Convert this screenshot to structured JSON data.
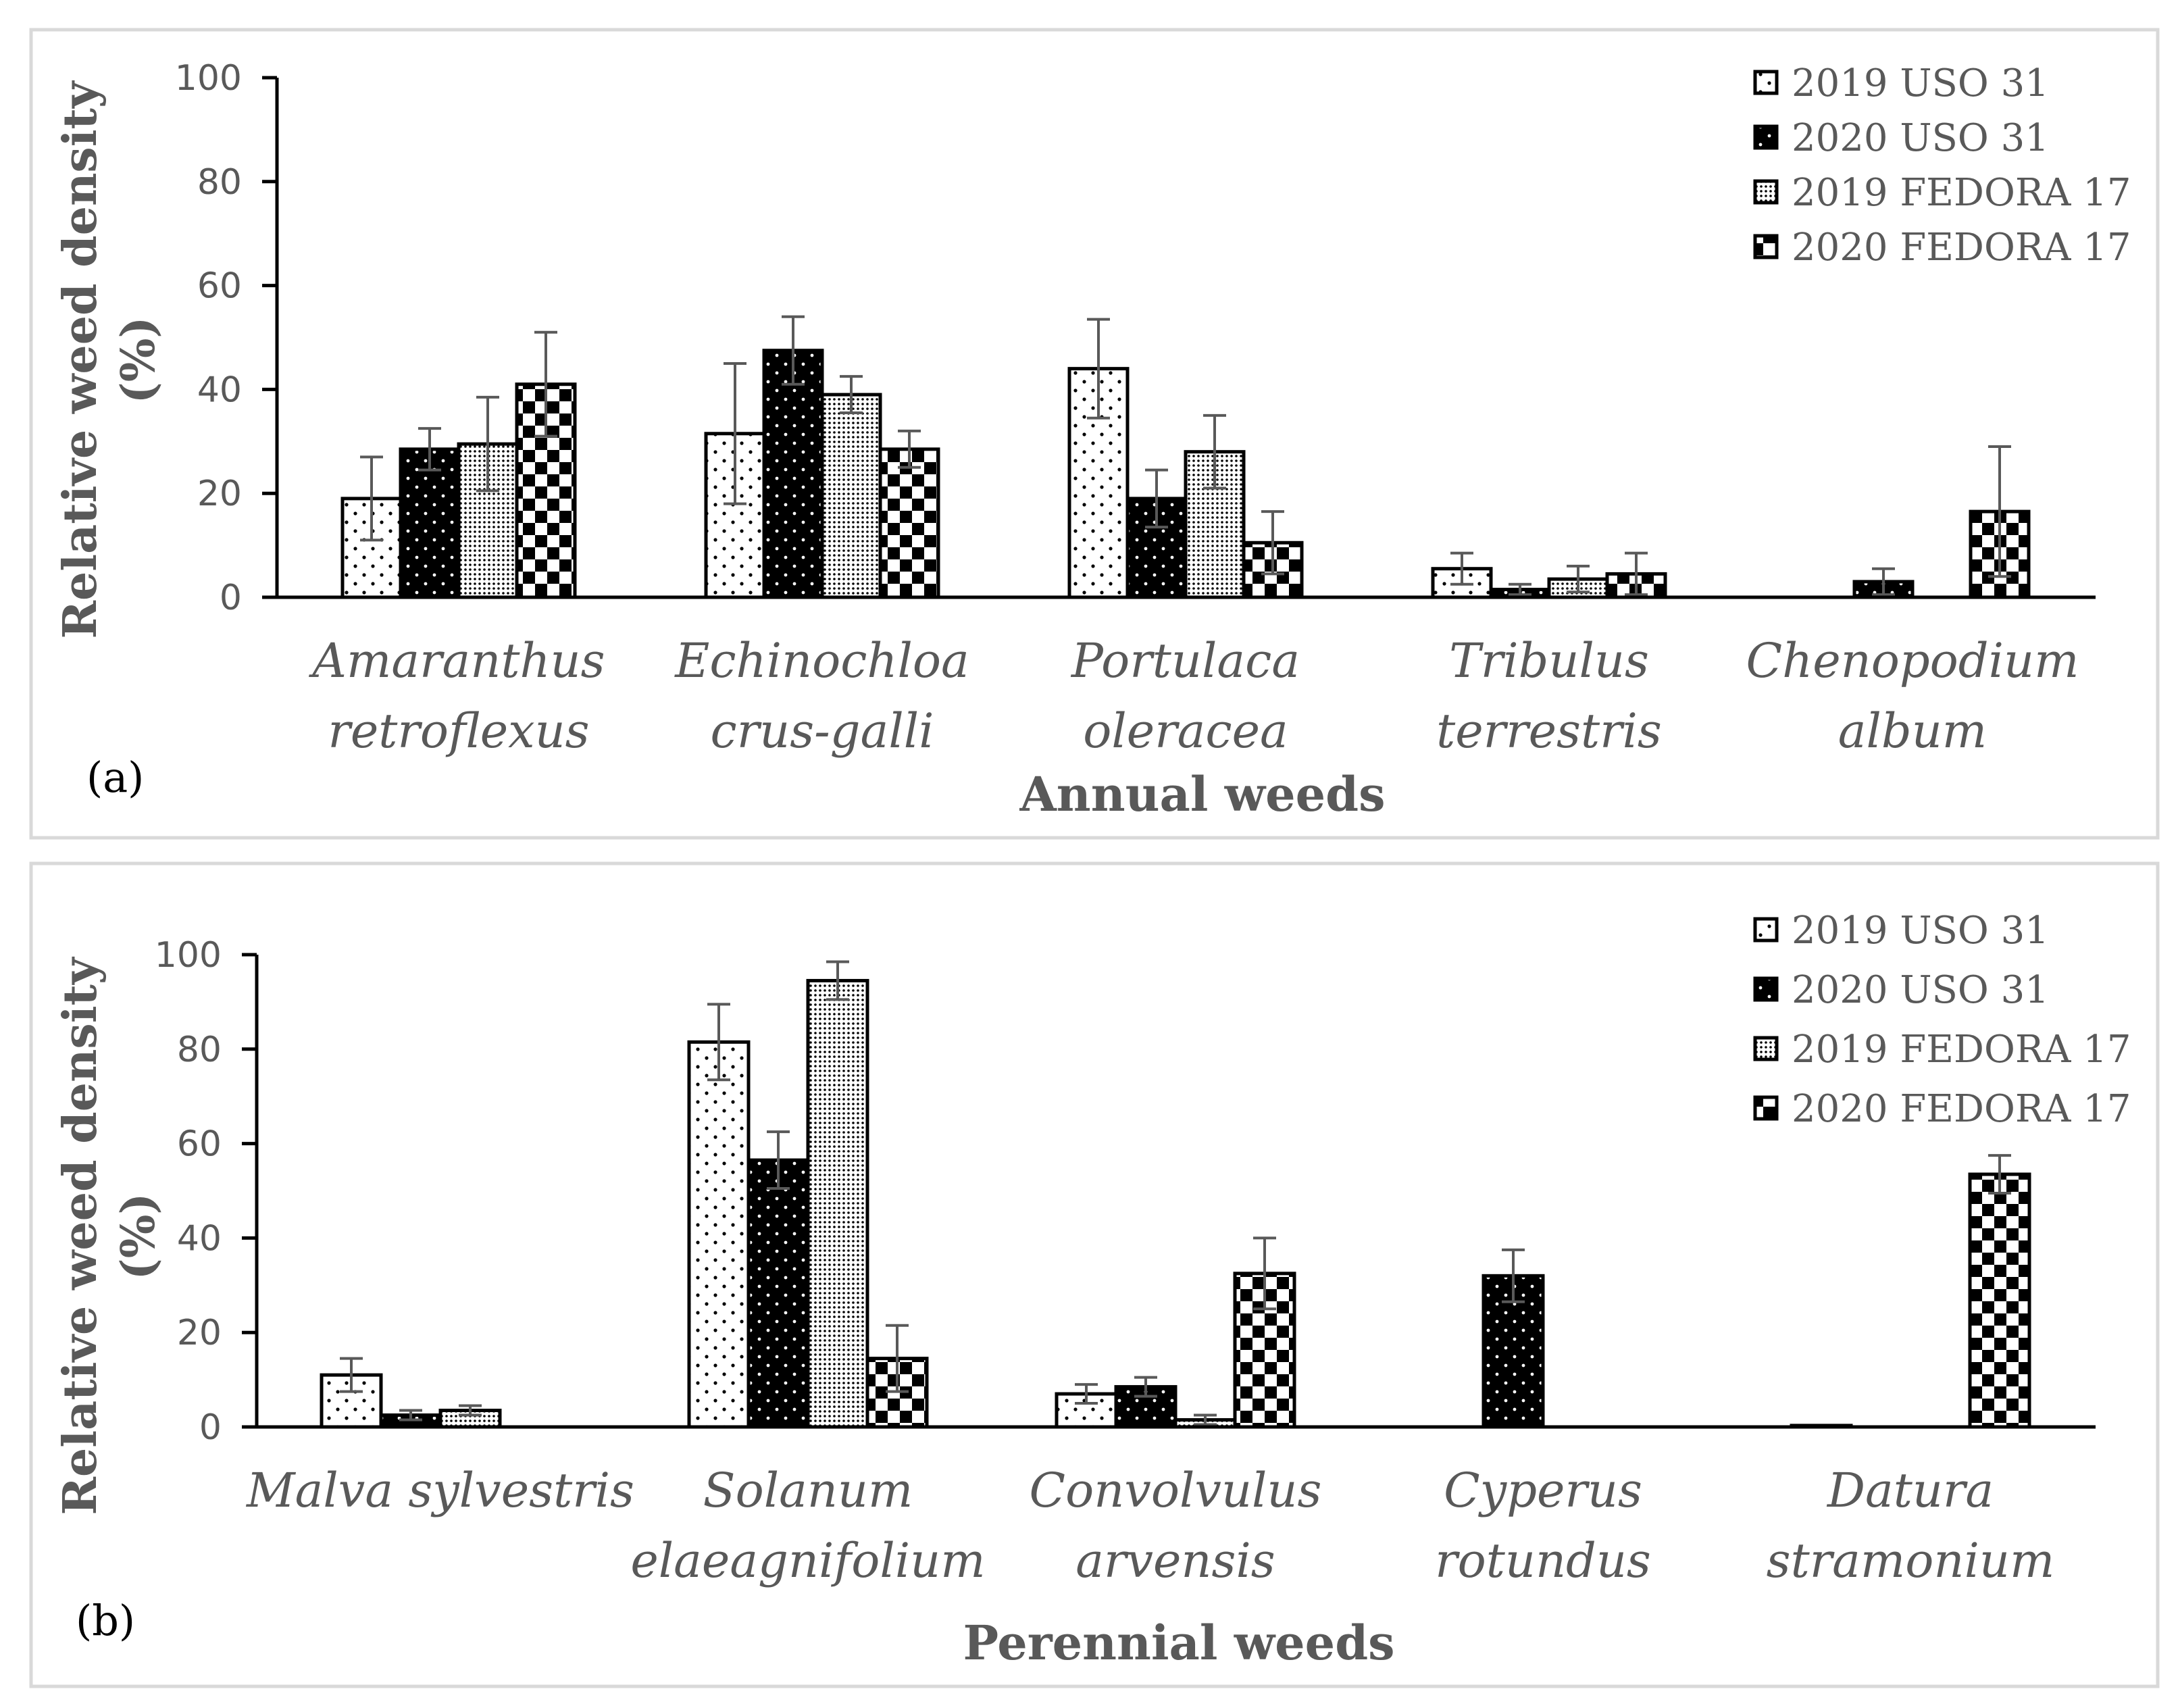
{
  "colors": {
    "axis": "#000000",
    "text": "#595959",
    "error": "#595959",
    "frame": "#d9d9d9",
    "bar_stroke": "#000000"
  },
  "chart_data": [
    {
      "id": "a",
      "type": "bar",
      "panel_label": "(a)",
      "title": "",
      "xlabel": "Annual weeds",
      "ylabel": "Relative weed density (%)",
      "ylabel_lines": [
        "Relative weed density",
        "(%)"
      ],
      "ylim": [
        0,
        100
      ],
      "yticks": [
        "0",
        "20",
        "40",
        "60",
        "80",
        "100"
      ],
      "categories": [
        [
          "Amaranthus",
          "retroflexus"
        ],
        [
          "Echinochloa",
          "crus-galli"
        ],
        [
          "Portulaca",
          "oleracea"
        ],
        [
          "Tribulus",
          "terrestris"
        ],
        [
          "Chenopodium",
          "album"
        ]
      ],
      "series": [
        {
          "name": "2019 USO 31",
          "pattern": "dots",
          "values": [
            19,
            31.5,
            44,
            5.5,
            0
          ],
          "errors": [
            8,
            13.5,
            9.5,
            3,
            0
          ]
        },
        {
          "name": "2020 USO 31",
          "pattern": "solid",
          "values": [
            28.5,
            47.5,
            19,
            1.5,
            3
          ],
          "errors": [
            4,
            6.5,
            5.5,
            1,
            2.5
          ]
        },
        {
          "name": "2019 FEDORA 17",
          "pattern": "grid",
          "values": [
            29.5,
            39,
            28,
            3.5,
            0
          ],
          "errors": [
            9,
            3.5,
            7,
            2.5,
            0
          ]
        },
        {
          "name": "2020 FEDORA 17",
          "pattern": "checker",
          "values": [
            41,
            28.5,
            10.5,
            4.5,
            16.5
          ],
          "errors": [
            10,
            3.5,
            6,
            4,
            12.5
          ]
        }
      ],
      "legend_position": "top-right",
      "legend_labels": [
        "2019 USO 31",
        "2020 USO 31",
        "2019 FEDORA 17",
        "2020 FEDORA 17"
      ]
    },
    {
      "id": "b",
      "type": "bar",
      "panel_label": "(b)",
      "title": "",
      "xlabel": "Perennial weeds",
      "ylabel": "Relative weed density (%)",
      "ylabel_lines": [
        "Relative weed density",
        "(%)"
      ],
      "ylim": [
        0,
        100
      ],
      "yticks": [
        "0",
        "20",
        "40",
        "60",
        "80",
        "100"
      ],
      "categories": [
        [
          "Malva sylvestris"
        ],
        [
          "Solanum",
          "elaeagnifolium"
        ],
        [
          "Convolvulus",
          "arvensis"
        ],
        [
          "Cyperus",
          "rotundus"
        ],
        [
          "Datura",
          "stramonium"
        ]
      ],
      "series": [
        {
          "name": "2019 USO 31",
          "pattern": "dots",
          "values": [
            11,
            81.5,
            7,
            0,
            0.3
          ],
          "errors": [
            3.5,
            8,
            2,
            0,
            0
          ]
        },
        {
          "name": "2020 USO 31",
          "pattern": "solid",
          "values": [
            2.5,
            56.5,
            8.5,
            32,
            0
          ],
          "errors": [
            1,
            6,
            2,
            5.5,
            0
          ]
        },
        {
          "name": "2019 FEDORA 17",
          "pattern": "grid",
          "values": [
            3.5,
            94.5,
            1.5,
            0,
            0
          ],
          "errors": [
            1,
            4,
            1,
            0,
            0
          ]
        },
        {
          "name": "2020 FEDORA 17",
          "pattern": "checker",
          "values": [
            0,
            14.5,
            32.5,
            0,
            53.5
          ],
          "errors": [
            0,
            7,
            7.5,
            0,
            4
          ]
        }
      ],
      "legend_position": "top-right",
      "legend_labels": [
        "2019 USO 31",
        "2020 USO 31",
        "2019 FEDORA 17",
        "2020 FEDORA 17"
      ]
    }
  ]
}
